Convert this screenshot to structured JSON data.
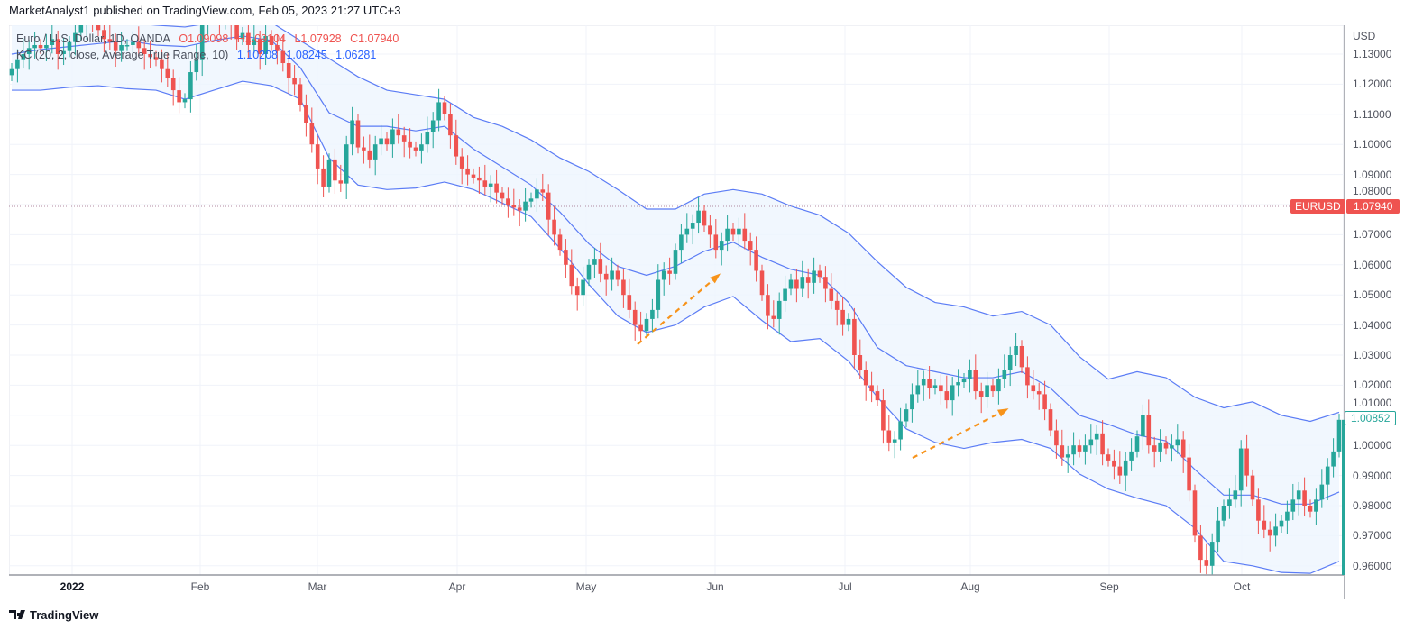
{
  "header": {
    "publisher_line": "MarketAnalyst1 published on TradingView.com, Feb 05, 2023 21:27 UTC+3"
  },
  "legend": {
    "symbol": "Euro / U.S. Dollar, 1D, OANDA",
    "open": "O1.09098",
    "high": "H1.09104",
    "low": "L1.07928",
    "close": "C1.07940",
    "indicator": "KC (20, 2, close, Average True Range, 10)",
    "kc_upper": "1.10208",
    "kc_middle": "1.08245",
    "kc_lower": "1.06281"
  },
  "price_axis": {
    "currency": "USD",
    "labels": [
      "1.13000",
      "1.12000",
      "1.11000",
      "1.10000",
      "1.09000",
      "1.08000",
      "1.07000",
      "1.06000",
      "1.05000",
      "1.04000",
      "1.03000",
      "1.02000",
      "1.01000",
      "1.00000",
      "0.99000",
      "0.98000",
      "0.97000",
      "0.96000"
    ]
  },
  "tags": {
    "symbol": "EURUSD",
    "current_price": "1.07940",
    "last_bar_price": "1.00852"
  },
  "brand": {
    "name": "TradingView"
  },
  "colors": {
    "up": "#26a69a",
    "down": "#ef5350",
    "band_line": "#5b7cf5",
    "band_fill": "#eef5fe",
    "arrow": "#f7931a"
  },
  "chart_data": {
    "type": "candlestick",
    "symbol": "EURUSD",
    "interval": "1D",
    "xlabels": [
      "2022",
      "Feb",
      "Mar",
      "Apr",
      "May",
      "Jun",
      "Jul",
      "Aug",
      "Sep",
      "Oct"
    ],
    "ylim": [
      0.957,
      1.139
    ],
    "grid": true,
    "current_price_line": 1.0794,
    "closes": [
      1.125,
      1.128,
      1.13,
      1.132,
      1.133,
      1.132,
      1.133,
      1.135,
      1.13,
      1.131,
      1.134,
      1.137,
      1.14,
      1.145,
      1.141,
      1.138,
      1.135,
      1.134,
      1.131,
      1.133,
      1.133,
      1.134,
      1.132,
      1.13,
      1.129,
      1.128,
      1.125,
      1.122,
      1.118,
      1.114,
      1.115,
      1.124,
      1.128,
      1.14,
      1.144,
      1.143,
      1.141,
      1.142,
      1.14,
      1.135,
      1.137,
      1.133,
      1.135,
      1.13,
      1.136,
      1.133,
      1.131,
      1.127,
      1.122,
      1.12,
      1.113,
      1.107,
      1.1,
      1.092,
      1.086,
      1.095,
      1.088,
      1.087,
      1.1,
      1.108,
      1.099,
      1.098,
      1.095,
      1.1,
      1.102,
      1.1,
      1.105,
      1.103,
      1.101,
      1.099,
      1.098,
      1.1,
      1.104,
      1.108,
      1.114,
      1.11,
      1.103,
      1.096,
      1.092,
      1.09,
      1.089,
      1.088,
      1.086,
      1.087,
      1.084,
      1.082,
      1.08,
      1.079,
      1.078,
      1.081,
      1.082,
      1.085,
      1.084,
      1.075,
      1.07,
      1.065,
      1.06,
      1.053,
      1.05,
      1.055,
      1.06,
      1.062,
      1.057,
      1.055,
      1.058,
      1.055,
      1.05,
      1.045,
      1.04,
      1.038,
      1.042,
      1.045,
      1.055,
      1.058,
      1.057,
      1.065,
      1.07,
      1.072,
      1.074,
      1.078,
      1.073,
      1.07,
      1.065,
      1.068,
      1.072,
      1.07,
      1.072,
      1.068,
      1.065,
      1.058,
      1.05,
      1.043,
      1.042,
      1.048,
      1.052,
      1.055,
      1.052,
      1.056,
      1.054,
      1.058,
      1.056,
      1.052,
      1.048,
      1.045,
      1.04,
      1.042,
      1.03,
      1.025,
      1.02,
      1.018,
      1.015,
      1.005,
      1.001,
      1.002,
      1.008,
      1.012,
      1.017,
      1.02,
      1.022,
      1.019,
      1.02,
      1.018,
      1.015,
      1.02,
      1.021,
      1.022,
      1.025,
      1.018,
      1.016,
      1.02,
      1.018,
      1.022,
      1.025,
      1.03,
      1.033,
      1.026,
      1.02,
      1.018,
      1.017,
      1.012,
      1.005,
      1.0,
      0.996,
      0.997,
      1.0,
      0.998,
      1.0,
      1.002,
      1.004,
      0.997,
      0.995,
      0.993,
      0.99,
      0.995,
      0.998,
      1.003,
      1.01,
      1.0,
      0.998,
      1.001,
      0.999,
      1.0,
      1.002,
      0.996,
      0.985,
      0.97,
      0.962,
      0.96,
      0.968,
      0.975,
      0.98,
      0.982,
      0.985,
      0.999,
      0.99,
      0.982,
      0.975,
      0.972,
      0.97,
      0.973,
      0.975,
      0.978,
      0.982,
      0.985,
      0.98,
      0.978,
      0.982,
      0.987,
      0.993,
      0.998,
      1.0085
    ],
    "keltner_weekly": {
      "upper": [
        1.1405,
        1.1405,
        1.1405,
        1.1414,
        1.1405,
        1.1396,
        1.139,
        1.1405,
        1.141,
        1.1405,
        1.1345,
        1.1285,
        1.1225,
        1.118,
        1.1165,
        1.115,
        1.109,
        1.106,
        1.1015,
        1.0955,
        1.091,
        1.085,
        1.0785,
        1.0785,
        1.0835,
        1.085,
        1.0835,
        1.0795,
        1.0765,
        1.0705,
        1.061,
        1.0525,
        1.0475,
        1.046,
        1.043,
        1.0445,
        1.04,
        1.0295,
        1.022,
        1.0245,
        1.0225,
        1.016,
        1.0125,
        1.0145,
        1.01,
        1.008,
        1.011
      ],
      "middle": [
        1.13,
        1.1315,
        1.1325,
        1.1335,
        1.1345,
        1.133,
        1.1325,
        1.1345,
        1.136,
        1.1345,
        1.1255,
        1.1105,
        1.106,
        1.106,
        1.1045,
        1.106,
        1.0985,
        1.0925,
        1.0865,
        1.0775,
        1.067,
        1.0595,
        1.0565,
        1.0595,
        1.0645,
        1.0675,
        1.0625,
        1.0585,
        1.0565,
        1.0475,
        1.0325,
        1.0265,
        1.0245,
        1.0225,
        1.0225,
        1.0245,
        1.019,
        1.01,
        1.007,
        1.0035,
        1.0015,
        0.992,
        0.9835,
        0.9835,
        0.9805,
        0.9805,
        0.9845
      ],
      "lower": [
        1.118,
        1.118,
        1.119,
        1.1195,
        1.1185,
        1.118,
        1.115,
        1.118,
        1.121,
        1.1195,
        1.115,
        1.0955,
        1.0865,
        1.085,
        1.0855,
        1.0875,
        1.085,
        1.0805,
        1.076,
        1.0655,
        1.0535,
        1.043,
        1.0375,
        1.04,
        1.046,
        1.0495,
        1.0415,
        1.0345,
        1.0355,
        1.028,
        1.016,
        1.0055,
        1.001,
        0.999,
        1.001,
        1.002,
        0.999,
        0.9905,
        0.9855,
        0.9825,
        0.98,
        0.9725,
        0.9615,
        0.96,
        0.9578,
        0.9575,
        0.9615
      ]
    }
  }
}
